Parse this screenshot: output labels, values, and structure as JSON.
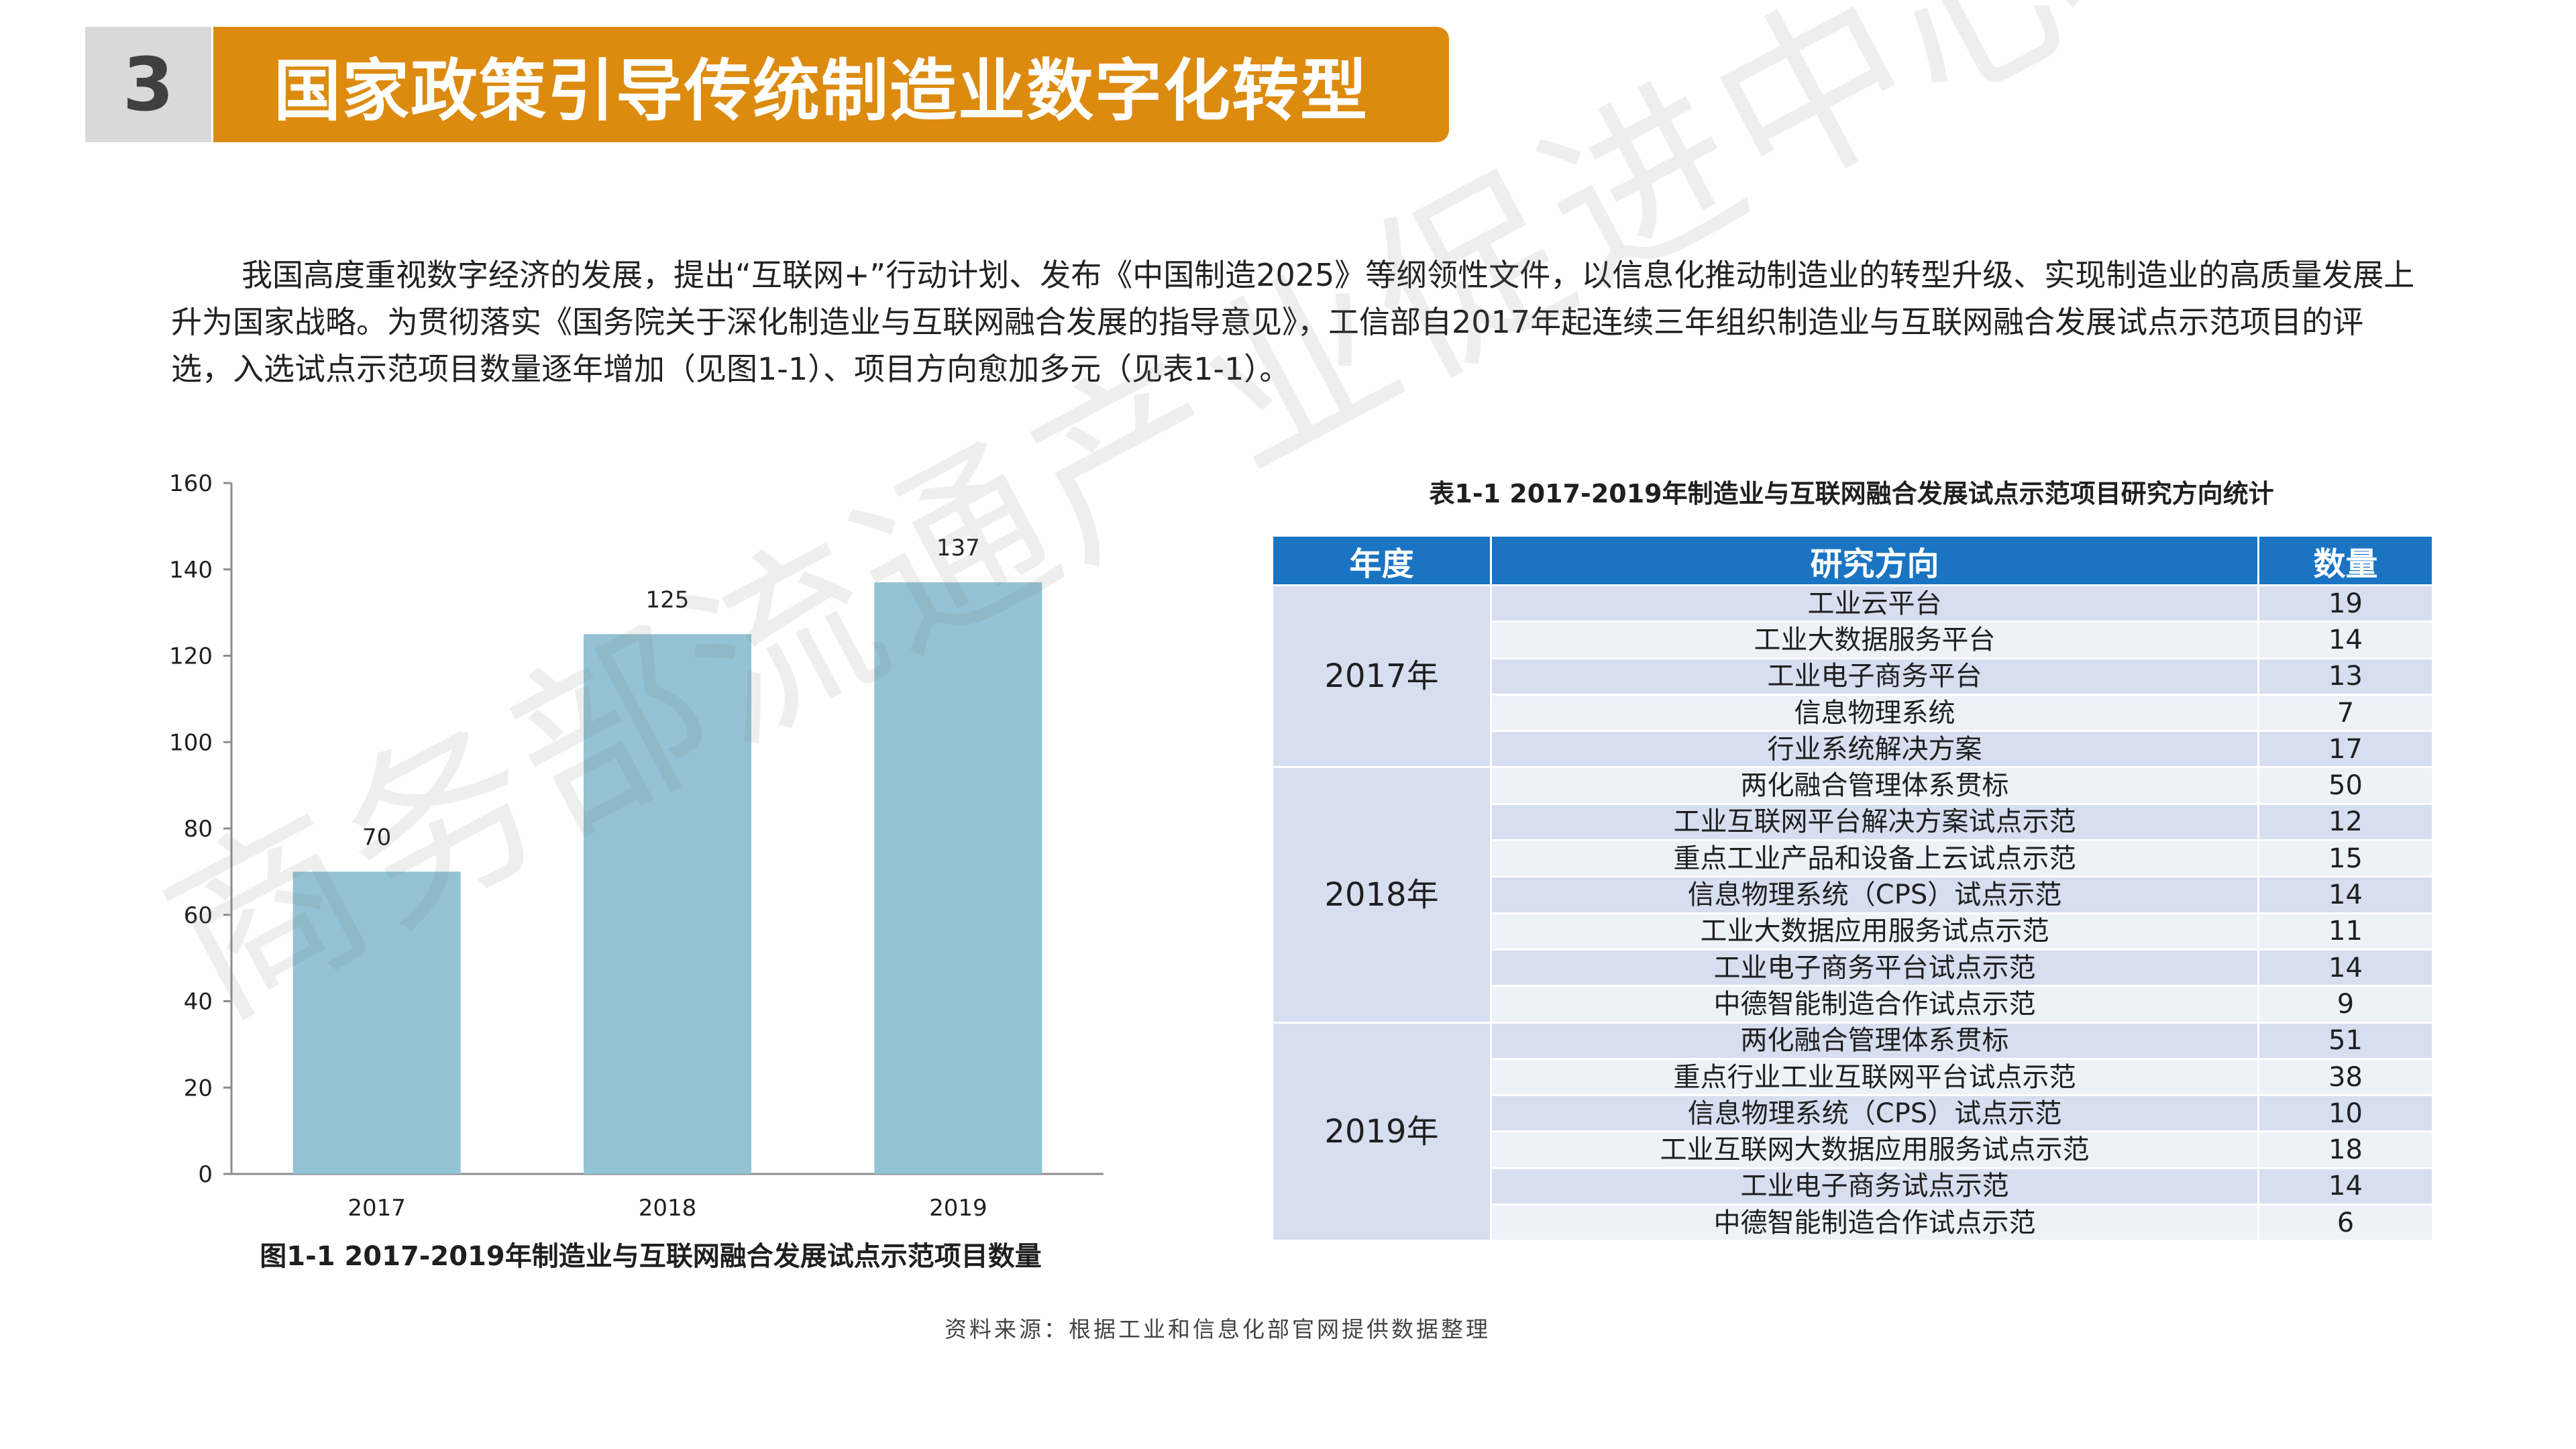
{
  "header": {
    "section_number": "3",
    "title": "国家政策引导传统制造业数字化转型"
  },
  "intro_text": "我国高度重视数字经济的发展，提出“互联网+”行动计划、发布《中国制造2025》等纲领性文件，以信息化推动制造业的转型升级、实现制造业的高质量发展上升为国家战略。为贯彻落实《国务院关于深化制造业与互联网融合发展的指导意见》，工信部自2017年起连续三年组织制造业与互联网融合发展试点示范项目的评选，入选试点示范项目数量逐年增加（见图1-1）、项目方向愈加多元（见表1-1）。",
  "chart_caption": "图1-1 2017-2019年制造业与互联网融合发展试点示范项目数量",
  "chart_data": {
    "type": "bar",
    "categories": [
      "2017",
      "2018",
      "2019"
    ],
    "values": [
      70,
      125,
      137
    ],
    "title": "",
    "xlabel": "",
    "ylabel": "",
    "ylim": [
      0,
      160
    ],
    "yticks": [
      0,
      20,
      40,
      60,
      80,
      100,
      120,
      140,
      160
    ],
    "bar_color": "#93c3d4",
    "data_labels": true,
    "grid": false
  },
  "table": {
    "title": "表1-1 2017-2019年制造业与互联网融合发展试点示范项目研究方向统计",
    "headers": [
      "年度",
      "研究方向",
      "数量"
    ],
    "groups": [
      {
        "year": "2017年",
        "rows": [
          {
            "direction": "工业云平台",
            "count": "19"
          },
          {
            "direction": "工业大数据服务平台",
            "count": "14"
          },
          {
            "direction": "工业电子商务平台",
            "count": "13"
          },
          {
            "direction": "信息物理系统",
            "count": "7"
          },
          {
            "direction": "行业系统解决方案",
            "count": "17"
          }
        ]
      },
      {
        "year": "2018年",
        "rows": [
          {
            "direction": "两化融合管理体系贯标",
            "count": "50"
          },
          {
            "direction": "工业互联网平台解决方案试点示范",
            "count": "12"
          },
          {
            "direction": "重点工业产品和设备上云试点示范",
            "count": "15"
          },
          {
            "direction": "信息物理系统（CPS）试点示范",
            "count": "14"
          },
          {
            "direction": "工业大数据应用服务试点示范",
            "count": "11"
          },
          {
            "direction": "工业电子商务平台试点示范",
            "count": "14"
          },
          {
            "direction": "中德智能制造合作试点示范",
            "count": "9"
          }
        ]
      },
      {
        "year": "2019年",
        "rows": [
          {
            "direction": "两化融合管理体系贯标",
            "count": "51"
          },
          {
            "direction": "重点行业工业互联网平台试点示范",
            "count": "38"
          },
          {
            "direction": "信息物理系统（CPS）试点示范",
            "count": "10"
          },
          {
            "direction": "工业互联网大数据应用服务试点示范",
            "count": "18"
          },
          {
            "direction": "工业电子商务试点示范",
            "count": "14"
          },
          {
            "direction": "中德智能制造合作试点示范",
            "count": "6"
          }
        ]
      }
    ]
  },
  "source": "资料来源：根据工业和信息化部官网提供数据整理",
  "watermark": "商务部流通产业促进中心"
}
